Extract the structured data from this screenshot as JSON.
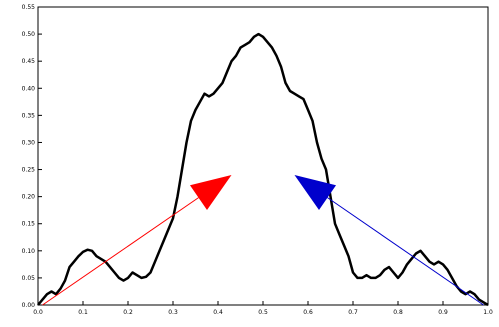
{
  "chart_data": {
    "type": "line",
    "xlim": [
      0,
      1
    ],
    "ylim": [
      0,
      0.55
    ],
    "grid": false,
    "x_ticks": [
      {
        "value": 0.0,
        "label": "0.0"
      },
      {
        "value": 0.1,
        "label": "0.1"
      },
      {
        "value": 0.2,
        "label": "0.2"
      },
      {
        "value": 0.3,
        "label": "0.3"
      },
      {
        "value": 0.4,
        "label": "0.4"
      },
      {
        "value": 0.5,
        "label": "0.5"
      },
      {
        "value": 0.6,
        "label": "0.6"
      },
      {
        "value": 0.7,
        "label": "0.7"
      },
      {
        "value": 0.8,
        "label": "0.8"
      },
      {
        "value": 0.9,
        "label": "0.9"
      },
      {
        "value": 1.0,
        "label": "1.0"
      }
    ],
    "y_ticks": [
      {
        "value": 0.0,
        "label": "0.00"
      },
      {
        "value": 0.05,
        "label": "0.05"
      },
      {
        "value": 0.1,
        "label": "0.10"
      },
      {
        "value": 0.15,
        "label": "0.15"
      },
      {
        "value": 0.2,
        "label": "0.20"
      },
      {
        "value": 0.25,
        "label": "0.25"
      },
      {
        "value": 0.3,
        "label": "0.30"
      },
      {
        "value": 0.35,
        "label": "0.35"
      },
      {
        "value": 0.4,
        "label": "0.40"
      },
      {
        "value": 0.45,
        "label": "0.45"
      },
      {
        "value": 0.5,
        "label": "0.50"
      },
      {
        "value": 0.55,
        "label": "0.55"
      }
    ],
    "series": [
      {
        "color": "#000000",
        "x": [
          0.0,
          0.01,
          0.02,
          0.03,
          0.04,
          0.05,
          0.06,
          0.07,
          0.08,
          0.09,
          0.1,
          0.11,
          0.12,
          0.13,
          0.14,
          0.15,
          0.16,
          0.17,
          0.18,
          0.19,
          0.2,
          0.21,
          0.22,
          0.23,
          0.24,
          0.25,
          0.26,
          0.27,
          0.28,
          0.29,
          0.3,
          0.31,
          0.32,
          0.33,
          0.34,
          0.35,
          0.36,
          0.37,
          0.38,
          0.39,
          0.4,
          0.41,
          0.42,
          0.43,
          0.44,
          0.45,
          0.46,
          0.47,
          0.48,
          0.49,
          0.5,
          0.51,
          0.52,
          0.53,
          0.54,
          0.55,
          0.56,
          0.57,
          0.58,
          0.59,
          0.6,
          0.61,
          0.62,
          0.63,
          0.64,
          0.65,
          0.66,
          0.67,
          0.68,
          0.69,
          0.7,
          0.71,
          0.72,
          0.73,
          0.74,
          0.75,
          0.76,
          0.77,
          0.78,
          0.79,
          0.8,
          0.81,
          0.82,
          0.83,
          0.84,
          0.85,
          0.86,
          0.87,
          0.88,
          0.89,
          0.9,
          0.91,
          0.92,
          0.93,
          0.94,
          0.95,
          0.96,
          0.97,
          0.98,
          0.99,
          1.0
        ],
        "y": [
          0.0,
          0.01,
          0.02,
          0.025,
          0.02,
          0.03,
          0.045,
          0.07,
          0.08,
          0.09,
          0.098,
          0.102,
          0.1,
          0.09,
          0.085,
          0.08,
          0.07,
          0.06,
          0.05,
          0.045,
          0.05,
          0.06,
          0.055,
          0.05,
          0.052,
          0.06,
          0.08,
          0.1,
          0.12,
          0.14,
          0.16,
          0.2,
          0.25,
          0.3,
          0.34,
          0.36,
          0.375,
          0.39,
          0.385,
          0.39,
          0.4,
          0.41,
          0.43,
          0.45,
          0.46,
          0.475,
          0.48,
          0.485,
          0.495,
          0.5,
          0.495,
          0.485,
          0.475,
          0.46,
          0.44,
          0.41,
          0.395,
          0.39,
          0.385,
          0.38,
          0.36,
          0.34,
          0.3,
          0.27,
          0.25,
          0.2,
          0.15,
          0.13,
          0.11,
          0.09,
          0.06,
          0.05,
          0.05,
          0.055,
          0.05,
          0.05,
          0.055,
          0.065,
          0.07,
          0.06,
          0.05,
          0.06,
          0.075,
          0.085,
          0.095,
          0.1,
          0.09,
          0.08,
          0.075,
          0.08,
          0.075,
          0.065,
          0.05,
          0.035,
          0.025,
          0.02,
          0.025,
          0.02,
          0.01,
          0.005,
          0.0
        ]
      }
    ],
    "arrows": [
      {
        "color": "#ff0000",
        "from": [
          0.01,
          0.0
        ],
        "to": [
          0.43,
          0.24
        ]
      },
      {
        "color": "#0000cc",
        "from": [
          0.99,
          0.0
        ],
        "to": [
          0.57,
          0.24
        ]
      }
    ]
  }
}
